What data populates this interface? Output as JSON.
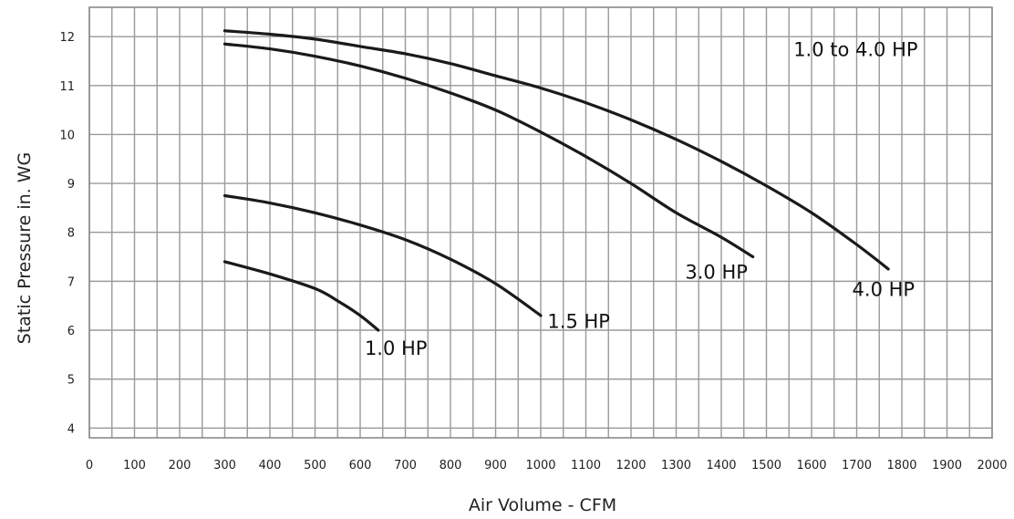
{
  "chart_data": {
    "type": "line",
    "title": "",
    "xlabel": "Air Volume - CFM",
    "ylabel": "Static Pressure in. WG",
    "xlim": [
      0,
      2000
    ],
    "ylim": [
      3.8,
      12.6
    ],
    "x_ticks": [
      0,
      100,
      200,
      300,
      400,
      500,
      600,
      700,
      800,
      900,
      1000,
      1100,
      1200,
      1300,
      1400,
      1500,
      1600,
      1700,
      1800,
      1900,
      2000
    ],
    "y_ticks": [
      4,
      5,
      6,
      7,
      8,
      9,
      10,
      11,
      12
    ],
    "grid": true,
    "legend": "none",
    "annotations": [
      {
        "text": "1.0 to 4.0 HP",
        "x": 1560,
        "y": 11.6
      }
    ],
    "series": [
      {
        "name": "1.0 HP",
        "label_at": [
          610,
          5.5
        ],
        "x": [
          300,
          400,
          500,
          550,
          600,
          640
        ],
        "y": [
          7.4,
          7.15,
          6.85,
          6.6,
          6.3,
          6.0
        ]
      },
      {
        "name": "1.5 HP",
        "label_at": [
          1015,
          6.05
        ],
        "x": [
          300,
          400,
          500,
          600,
          700,
          800,
          900,
          1000
        ],
        "y": [
          8.75,
          8.6,
          8.4,
          8.15,
          7.85,
          7.45,
          6.95,
          6.3
        ]
      },
      {
        "name": "3.0 HP",
        "label_at": [
          1320,
          7.05
        ],
        "x": [
          300,
          400,
          500,
          600,
          700,
          800,
          900,
          1000,
          1100,
          1200,
          1300,
          1400,
          1470
        ],
        "y": [
          11.85,
          11.75,
          11.6,
          11.4,
          11.15,
          10.85,
          10.5,
          10.05,
          9.55,
          9.0,
          8.4,
          7.9,
          7.5
        ]
      },
      {
        "name": "4.0 HP",
        "label_at": [
          1690,
          6.7
        ],
        "x": [
          300,
          400,
          500,
          600,
          700,
          800,
          900,
          1000,
          1100,
          1200,
          1300,
          1400,
          1500,
          1600,
          1700,
          1770
        ],
        "y": [
          12.12,
          12.05,
          11.95,
          11.8,
          11.65,
          11.45,
          11.2,
          10.95,
          10.65,
          10.3,
          9.9,
          9.45,
          8.95,
          8.4,
          7.75,
          7.25
        ]
      }
    ]
  }
}
